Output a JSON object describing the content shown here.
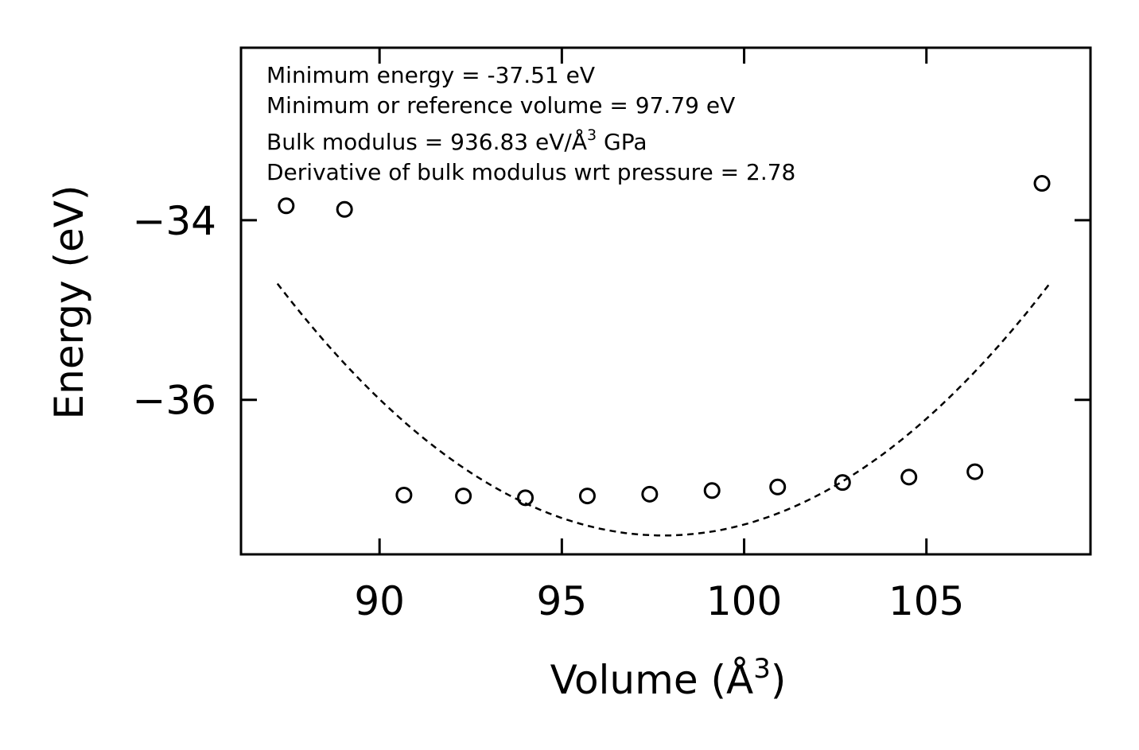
{
  "chart_data": {
    "type": "scatter",
    "title": "",
    "xlabel": "Volume (Å",
    "xlabel_sup": "3",
    "xlabel_close": ")",
    "ylabel": "Energy (eV)",
    "xlim": [
      86.2,
      109.5
    ],
    "ylim": [
      -37.72,
      -32.08
    ],
    "xticks": [
      90,
      95,
      100,
      105
    ],
    "xtick_labels": [
      "90",
      "95",
      "100",
      "105"
    ],
    "yticks": [
      -34,
      -36
    ],
    "ytick_labels": [
      "−34",
      "−36"
    ],
    "grid": false,
    "series": [
      {
        "name": "data",
        "kind": "scatter",
        "marker": "open-circle",
        "color": "#000000",
        "x": [
          87.44,
          89.04,
          90.67,
          92.3,
          94.0,
          95.7,
          97.41,
          99.12,
          100.92,
          102.7,
          104.52,
          106.33,
          108.17
        ],
        "y": [
          -33.84,
          -33.88,
          -37.06,
          -37.07,
          -37.09,
          -37.07,
          -37.05,
          -37.01,
          -36.97,
          -36.92,
          -36.86,
          -36.8,
          -33.59
        ]
      },
      {
        "name": "fit",
        "kind": "line",
        "style": "dashed",
        "color": "#000000",
        "x_min": 87.2,
        "x_max": 108.4,
        "vmin": 97.79,
        "emin": -37.51,
        "curvature": 0.025
      }
    ],
    "annotations": {
      "line1": "Minimum energy = -37.51 eV",
      "line2": "Minimum or reference volume = 97.79 eV",
      "line3_pre": "Bulk modulus = 936.83 eV/Å",
      "line3_sup": "3",
      "line3_post": " GPa",
      "line4": "Derivative of bulk modulus wrt pressure = 2.78"
    }
  }
}
